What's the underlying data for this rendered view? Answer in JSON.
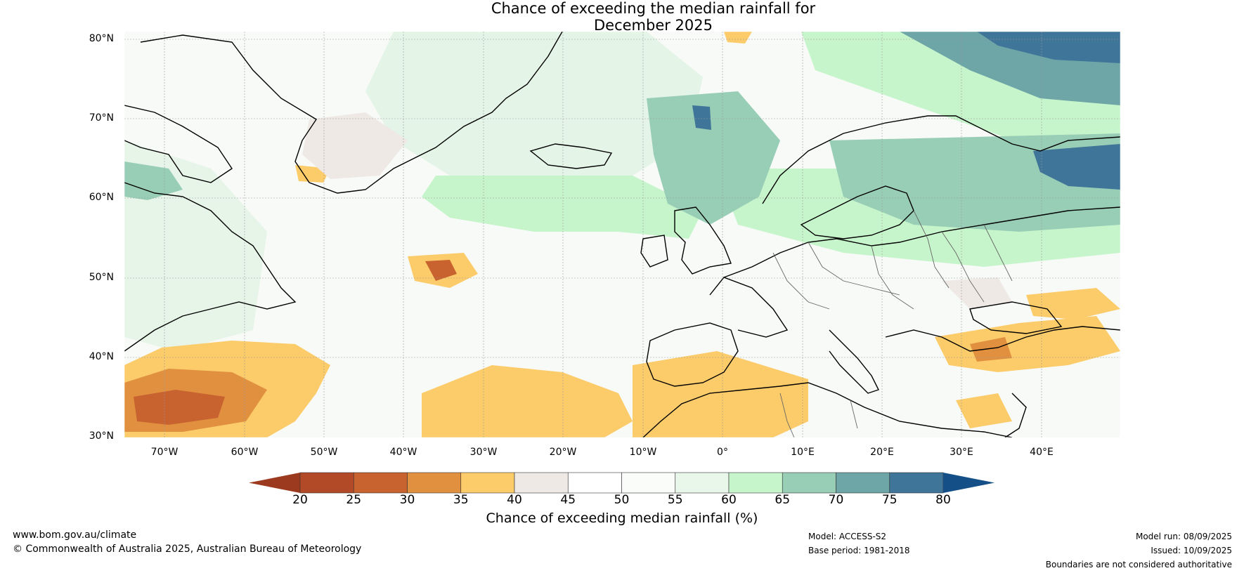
{
  "title_line1": "Chance of exceeding the median rainfall for",
  "title_line2": "December 2025",
  "lat_labels": [
    "80°N",
    "70°N",
    "60°N",
    "50°N",
    "40°N",
    "30°N"
  ],
  "lon_labels": [
    "70°W",
    "60°W",
    "50°W",
    "40°W",
    "30°W",
    "20°W",
    "10°W",
    "0°",
    "10°E",
    "20°E",
    "30°E",
    "40°E"
  ],
  "colorbar": {
    "ticks": [
      "20",
      "25",
      "30",
      "35",
      "40",
      "45",
      "50",
      "55",
      "60",
      "65",
      "70",
      "75",
      "80"
    ],
    "label": "Chance of exceeding median rainfall (%)",
    "colors": [
      "#9b3a1e",
      "#b24a28",
      "#c8622f",
      "#e0903f",
      "#fccb6a",
      "#efe9e6",
      "#ffffff",
      "#fafcf9",
      "#e9f6ea",
      "#c7f5cb",
      "#98cdb6",
      "#6ea6a8",
      "#3f7598",
      "#144f87"
    ]
  },
  "footer": {
    "website": "www.bom.gov.au/climate",
    "copyright": "© Commonwealth of Australia 2025, Australian Bureau of Meteorology",
    "model": "Model: ACCESS-S2",
    "base_period": "Base period: 1981-2018",
    "model_run": "Model run: 08/09/2025",
    "issued": "Issued: 10/09/2025",
    "disclaimer": "Boundaries are not considered authoritative"
  }
}
